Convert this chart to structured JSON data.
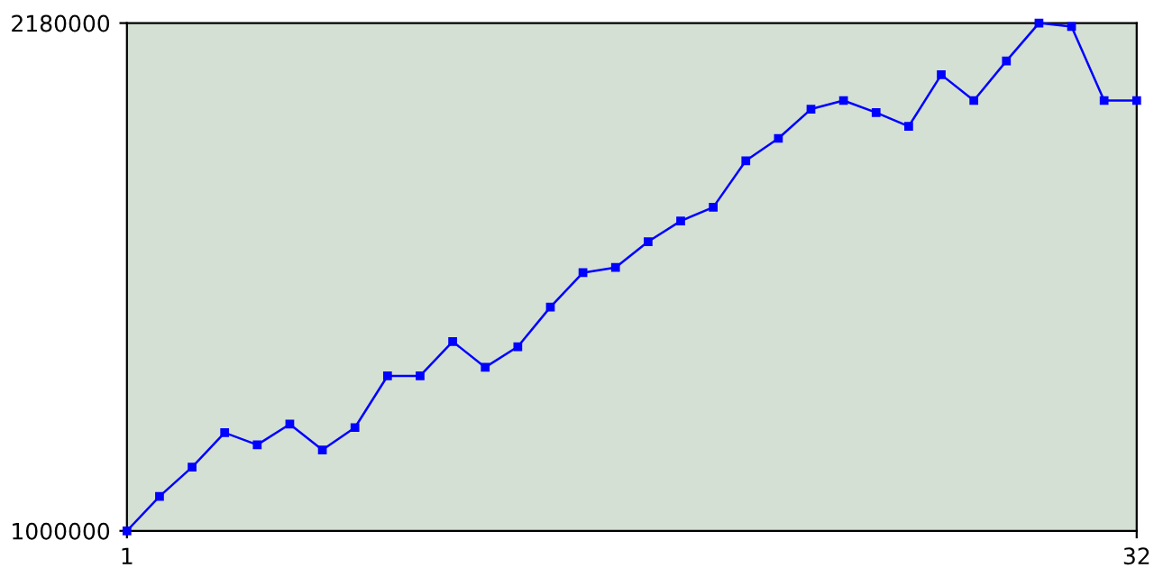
{
  "chart_data": {
    "type": "line",
    "x": [
      1,
      2,
      3,
      4,
      5,
      6,
      7,
      8,
      9,
      10,
      11,
      12,
      13,
      14,
      15,
      16,
      17,
      18,
      19,
      20,
      21,
      22,
      23,
      24,
      25,
      26,
      27,
      28,
      29,
      30,
      31,
      32
    ],
    "series": [
      {
        "color": "#0000ff",
        "values": [
          1000000,
          1080000,
          1148000,
          1228000,
          1200000,
          1248000,
          1188000,
          1240000,
          1360000,
          1360000,
          1440000,
          1380000,
          1428000,
          1520000,
          1600000,
          1612000,
          1672000,
          1720000,
          1752000,
          1860000,
          1912000,
          1980000,
          2000000,
          1972000,
          1940000,
          2060000,
          2000000,
          2092000,
          2180000,
          2172000,
          2000000,
          2000000
        ]
      }
    ],
    "xlim": [
      1,
      32
    ],
    "ylim": [
      1000000,
      2180000
    ],
    "xticks": [
      1,
      32
    ],
    "yticks": [
      1000000,
      2180000
    ],
    "marker": "square",
    "line_style": "solid",
    "grid": false,
    "legend": false
  }
}
